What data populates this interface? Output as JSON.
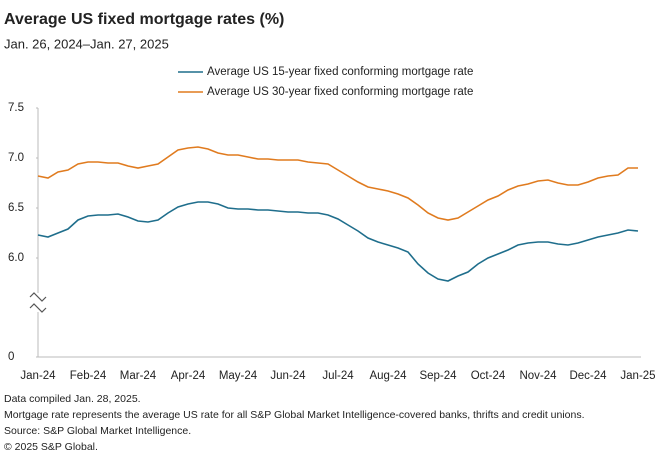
{
  "chart_data": {
    "type": "line",
    "title": "Average US fixed mortgage rates (%)",
    "subtitle": "Jan. 26, 2024–Jan. 27, 2025",
    "categories": [
      "Jan-24",
      null,
      null,
      null,
      null,
      "Feb-24",
      null,
      null,
      null,
      null,
      "Mar-24",
      null,
      null,
      null,
      null,
      "Apr-24",
      null,
      null,
      null,
      null,
      "May-24",
      null,
      null,
      null,
      null,
      "Jun-24",
      null,
      null,
      null,
      null,
      "Jul-24",
      null,
      null,
      null,
      null,
      "Aug-24",
      null,
      null,
      null,
      null,
      "Sep-24",
      null,
      null,
      null,
      null,
      "Oct-24",
      null,
      null,
      null,
      null,
      "Nov-24",
      null,
      null,
      null,
      null,
      "Dec-24",
      null,
      null,
      null,
      null,
      "Jan-25"
    ],
    "series": [
      {
        "name": "Average US 15-year fixed conforming mortgage rate",
        "color": "#1f6e8c",
        "values": [
          6.23,
          6.21,
          6.25,
          6.29,
          6.38,
          6.42,
          6.43,
          6.43,
          6.44,
          6.41,
          6.37,
          6.36,
          6.38,
          6.45,
          6.51,
          6.54,
          6.56,
          6.56,
          6.54,
          6.5,
          6.49,
          6.49,
          6.48,
          6.48,
          6.47,
          6.46,
          6.46,
          6.45,
          6.45,
          6.43,
          6.39,
          6.33,
          6.27,
          6.2,
          6.16,
          6.13,
          6.1,
          6.06,
          5.94,
          5.85,
          5.79,
          5.77,
          5.82,
          5.86,
          5.94,
          6.0,
          6.04,
          6.08,
          6.13,
          6.15,
          6.16,
          6.16,
          6.14,
          6.13,
          6.15,
          6.18,
          6.21,
          6.23,
          6.25,
          6.28,
          6.27
        ]
      },
      {
        "name": "Average US 30-year fixed conforming mortgage rate",
        "color": "#e07b1f",
        "values": [
          6.82,
          6.8,
          6.86,
          6.88,
          6.94,
          6.96,
          6.96,
          6.95,
          6.95,
          6.92,
          6.9,
          6.92,
          6.94,
          7.01,
          7.08,
          7.1,
          7.11,
          7.09,
          7.05,
          7.03,
          7.03,
          7.01,
          6.99,
          6.99,
          6.98,
          6.98,
          6.98,
          6.96,
          6.95,
          6.94,
          6.88,
          6.82,
          6.76,
          6.71,
          6.69,
          6.67,
          6.64,
          6.6,
          6.53,
          6.45,
          6.4,
          6.38,
          6.4,
          6.46,
          6.52,
          6.58,
          6.62,
          6.68,
          6.72,
          6.74,
          6.77,
          6.78,
          6.75,
          6.73,
          6.73,
          6.76,
          6.8,
          6.82,
          6.83,
          6.9,
          6.9
        ]
      }
    ],
    "ylim": [
      5.5,
      7.5
    ],
    "yticks": [
      0,
      {
        "value": 6,
        "label": "6.0"
      },
      6.5,
      {
        "value": 7,
        "label": "7.0"
      },
      7.5
    ],
    "axis_break": true,
    "grid": false,
    "legend": "top",
    "notes": [
      "Data compiled Jan. 28, 2025.",
      "Mortgage rate represents the average US rate for all S&P Global Market Intelligence-covered banks, thrifts and credit unions.",
      "Source: S&P Global Market Intelligence.",
      "© 2025 S&P Global."
    ]
  }
}
